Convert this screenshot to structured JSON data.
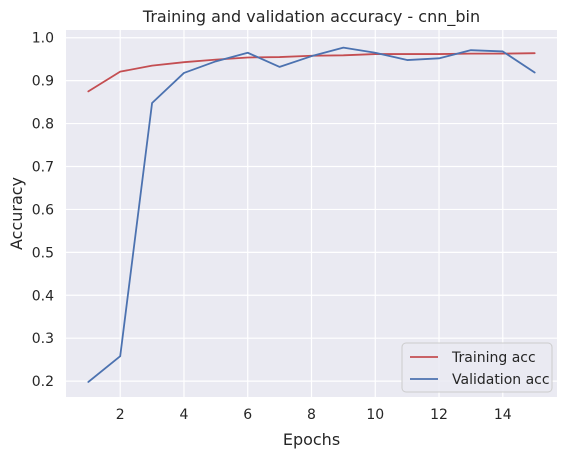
{
  "chart_data": {
    "type": "line",
    "title": "Training and validation accuracy - cnn_bin",
    "xlabel": "Epochs",
    "ylabel": "Accuracy",
    "x": [
      1,
      2,
      3,
      4,
      5,
      6,
      7,
      8,
      9,
      10,
      11,
      12,
      13,
      14,
      15
    ],
    "xlim": [
      0.3,
      15.7
    ],
    "ylim": [
      0.163,
      1.018
    ],
    "xticks": [
      2,
      4,
      6,
      8,
      10,
      12,
      14
    ],
    "yticks": [
      0.2,
      0.3,
      0.4,
      0.5,
      0.6,
      0.7,
      0.8,
      0.9,
      1.0
    ],
    "grid": true,
    "legend_position": "lower-right",
    "series": [
      {
        "name": "Training acc",
        "color": "#c44e52",
        "values": [
          0.875,
          0.921,
          0.935,
          0.943,
          0.949,
          0.954,
          0.955,
          0.958,
          0.959,
          0.962,
          0.962,
          0.962,
          0.963,
          0.963,
          0.964
        ]
      },
      {
        "name": "Validation acc",
        "color": "#4c72b0",
        "values": [
          0.198,
          0.258,
          0.848,
          0.918,
          0.945,
          0.965,
          0.932,
          0.957,
          0.977,
          0.965,
          0.948,
          0.952,
          0.971,
          0.968,
          0.919
        ]
      }
    ]
  },
  "colors": {
    "plot_background": "#eaeaf2",
    "grid": "#ffffff",
    "text": "#262626"
  }
}
